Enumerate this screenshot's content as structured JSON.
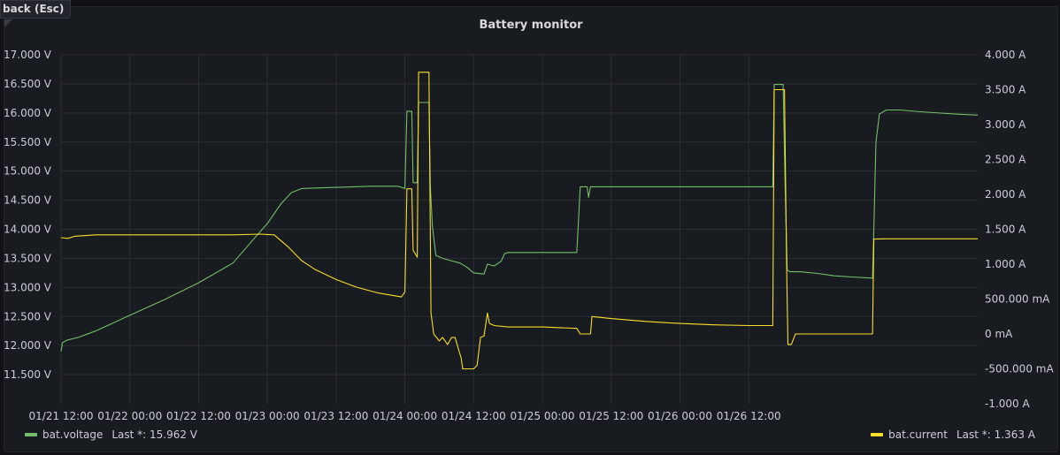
{
  "nav": {
    "back_label": "back (Esc)"
  },
  "colors": {
    "voltage": "#73bf69",
    "current": "#fade2a",
    "grid": "#2b2e34",
    "background": "#181b1f"
  },
  "chart_data": {
    "type": "line",
    "title": "Battery monitor",
    "x_ticks": [
      "01/21 12:00",
      "01/22 00:00",
      "01/22 12:00",
      "01/23 00:00",
      "01/23 12:00",
      "01/24 00:00",
      "01/24 12:00",
      "01/25 00:00",
      "01/25 12:00",
      "01/26 00:00",
      "01/26 12:00"
    ],
    "x_range": [
      "01/21 12:00",
      "01/26 20:00"
    ],
    "y_left": {
      "unit": "V",
      "ylim": [
        11.5,
        17.0
      ],
      "tick_values": [
        11.5,
        12.0,
        12.5,
        13.0,
        13.5,
        14.0,
        14.5,
        15.0,
        15.5,
        16.0,
        16.5,
        17.0
      ],
      "tick_labels": [
        "11.500 V",
        "12.000 V",
        "12.500 V",
        "13.000 V",
        "13.500 V",
        "14.000 V",
        "14.500 V",
        "15.000 V",
        "15.500 V",
        "16.000 V",
        "16.500 V",
        "17.000 V"
      ]
    },
    "y_right": {
      "unit": "A",
      "ylim": [
        -1.0,
        4.0
      ],
      "tick_values": [
        -1.0,
        -0.5,
        0,
        0.5,
        1.0,
        1.5,
        2.0,
        2.5,
        3.0,
        3.5,
        4.0
      ],
      "tick_labels": [
        "-1.000 A",
        "-500.000 mA",
        "0 mA",
        "500.000 mA",
        "1.000 A",
        "1.500 A",
        "2.000 A",
        "2.500 A",
        "3.000 A",
        "3.500 A",
        "4.000 A"
      ]
    },
    "grid": true,
    "legend_position": "bottom",
    "series": [
      {
        "name": "bat.voltage",
        "axis": "left",
        "last_label": "Last *: 15.962 V",
        "points": [
          [
            0.0,
            11.9
          ],
          [
            0.02,
            12.05
          ],
          [
            0.08,
            12.09
          ],
          [
            0.25,
            12.14
          ],
          [
            0.5,
            12.25
          ],
          [
            1.0,
            12.52
          ],
          [
            1.5,
            12.79
          ],
          [
            2.0,
            13.08
          ],
          [
            2.5,
            13.42
          ],
          [
            2.8,
            13.83
          ],
          [
            3.0,
            14.1
          ],
          [
            3.2,
            14.44
          ],
          [
            3.35,
            14.63
          ],
          [
            3.5,
            14.7
          ],
          [
            3.7,
            14.71
          ],
          [
            4.0,
            14.72
          ],
          [
            4.5,
            14.74
          ],
          [
            4.9,
            14.74
          ],
          [
            5.0,
            14.7
          ],
          [
            5.03,
            16.03
          ],
          [
            5.1,
            16.03
          ],
          [
            5.12,
            14.8
          ],
          [
            5.18,
            14.8
          ],
          [
            5.2,
            16.18
          ],
          [
            5.35,
            16.18
          ],
          [
            5.37,
            14.73
          ],
          [
            5.4,
            14.05
          ],
          [
            5.45,
            13.55
          ],
          [
            5.55,
            13.5
          ],
          [
            5.7,
            13.45
          ],
          [
            5.8,
            13.42
          ],
          [
            5.9,
            13.35
          ],
          [
            6.0,
            13.25
          ],
          [
            6.15,
            13.23
          ],
          [
            6.2,
            13.4
          ],
          [
            6.3,
            13.37
          ],
          [
            6.4,
            13.45
          ],
          [
            6.45,
            13.58
          ],
          [
            6.5,
            13.6
          ],
          [
            7.0,
            13.6
          ],
          [
            7.5,
            13.6
          ],
          [
            7.55,
            14.73
          ],
          [
            7.65,
            14.73
          ],
          [
            7.67,
            14.55
          ],
          [
            7.7,
            14.73
          ],
          [
            8.0,
            14.73
          ],
          [
            9.0,
            14.73
          ],
          [
            10.0,
            14.73
          ],
          [
            10.35,
            14.73
          ],
          [
            10.37,
            16.49
          ],
          [
            10.5,
            16.49
          ],
          [
            10.53,
            14.7
          ],
          [
            10.56,
            13.3
          ],
          [
            10.6,
            13.27
          ],
          [
            10.75,
            13.27
          ],
          [
            11.0,
            13.24
          ],
          [
            11.25,
            13.2
          ],
          [
            11.5,
            13.18
          ],
          [
            11.8,
            13.16
          ],
          [
            11.82,
            14.0
          ],
          [
            11.85,
            15.5
          ],
          [
            11.9,
            15.98
          ],
          [
            12.0,
            16.05
          ],
          [
            12.2,
            16.05
          ],
          [
            12.5,
            16.02
          ],
          [
            13.0,
            15.98
          ],
          [
            13.33,
            15.962
          ]
        ]
      },
      {
        "name": "bat.current",
        "axis": "right",
        "last_label": "Last *: 1.363 A",
        "points": [
          [
            0.0,
            1.38
          ],
          [
            0.1,
            1.37
          ],
          [
            0.2,
            1.4
          ],
          [
            0.5,
            1.42
          ],
          [
            1.0,
            1.42
          ],
          [
            1.5,
            1.42
          ],
          [
            2.0,
            1.42
          ],
          [
            2.5,
            1.42
          ],
          [
            2.9,
            1.43
          ],
          [
            3.1,
            1.42
          ],
          [
            3.3,
            1.25
          ],
          [
            3.5,
            1.05
          ],
          [
            3.7,
            0.92
          ],
          [
            4.0,
            0.78
          ],
          [
            4.3,
            0.67
          ],
          [
            4.6,
            0.59
          ],
          [
            4.95,
            0.53
          ],
          [
            5.0,
            0.6
          ],
          [
            5.03,
            2.08
          ],
          [
            5.1,
            2.08
          ],
          [
            5.12,
            1.2
          ],
          [
            5.18,
            1.1
          ],
          [
            5.2,
            3.75
          ],
          [
            5.35,
            3.75
          ],
          [
            5.38,
            0.3
          ],
          [
            5.42,
            0.0
          ],
          [
            5.5,
            -0.1
          ],
          [
            5.55,
            -0.05
          ],
          [
            5.62,
            -0.15
          ],
          [
            5.68,
            -0.05
          ],
          [
            5.73,
            -0.05
          ],
          [
            5.78,
            -0.22
          ],
          [
            5.82,
            -0.35
          ],
          [
            5.84,
            -0.5
          ],
          [
            6.0,
            -0.5
          ],
          [
            6.05,
            -0.45
          ],
          [
            6.1,
            -0.05
          ],
          [
            6.15,
            -0.03
          ],
          [
            6.2,
            0.3
          ],
          [
            6.23,
            0.15
          ],
          [
            6.3,
            0.12
          ],
          [
            6.5,
            0.1
          ],
          [
            7.0,
            0.1
          ],
          [
            7.5,
            0.08
          ],
          [
            7.55,
            0.0
          ],
          [
            7.7,
            0.0
          ],
          [
            7.72,
            0.25
          ],
          [
            8.0,
            0.22
          ],
          [
            8.5,
            0.18
          ],
          [
            9.0,
            0.15
          ],
          [
            9.5,
            0.13
          ],
          [
            10.0,
            0.12
          ],
          [
            10.35,
            0.12
          ],
          [
            10.37,
            3.5
          ],
          [
            10.52,
            3.5
          ],
          [
            10.55,
            1.1
          ],
          [
            10.57,
            -0.15
          ],
          [
            10.62,
            -0.15
          ],
          [
            10.68,
            0.0
          ],
          [
            11.0,
            0.0
          ],
          [
            11.5,
            0.0
          ],
          [
            11.8,
            0.0
          ],
          [
            11.82,
            1.36
          ],
          [
            12.0,
            1.363
          ],
          [
            12.5,
            1.363
          ],
          [
            13.33,
            1.363
          ]
        ]
      }
    ]
  }
}
